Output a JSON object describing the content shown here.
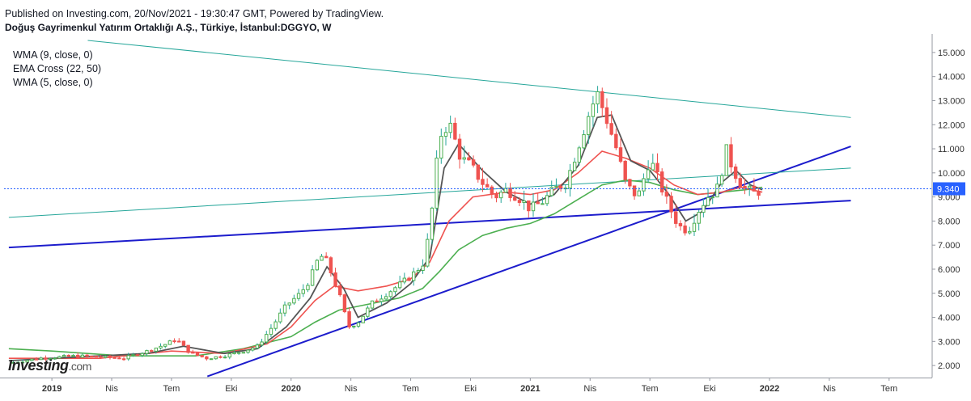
{
  "header": {
    "published": "Published on Investing.com, 20/Nov/2021 - 19:30:47 GMT, Powered by TradingView.",
    "symbol": "Doğuş Gayrimenkul Yatırım Ortaklığı A.Ş., Türkiye, İstanbul:DGGYO, W"
  },
  "indicators": [
    "WMA (9, close, 0)",
    "EMA Cross (22, 50)",
    "WMA (5, close, 0)"
  ],
  "logo": {
    "main": "Investing",
    "suffix": ".com"
  },
  "colors": {
    "up": "#26a69a",
    "up_body": "#4caf50",
    "down": "#ef5350",
    "wma9": "#555555",
    "ema22": "#ef5350",
    "ema50": "#4caf50",
    "trend_blue": "#1c1ccc",
    "trend_teal": "#26a69a",
    "price_line": "#2962ff"
  },
  "chart_data": {
    "type": "candlestick",
    "title": "Doğuş Gayrimenkul Yatırım Ortaklığı A.Ş., Türkiye, İstanbul:DGGYO, W",
    "ylim": [
      1.5,
      15.5
    ],
    "y_ticks": [
      "2.000",
      "3.000",
      "4.000",
      "5.000",
      "6.000",
      "7.000",
      "8.000",
      "9.000",
      "10.000",
      "11.000",
      "12.000",
      "13.000",
      "14.000",
      "15.000"
    ],
    "x_tick_labels": [
      {
        "label": "2019",
        "t": 2019.0,
        "bold": true
      },
      {
        "label": "Nis",
        "t": 2019.25
      },
      {
        "label": "Tem",
        "t": 2019.5
      },
      {
        "label": "Eki",
        "t": 2019.75
      },
      {
        "label": "2020",
        "t": 2020.0,
        "bold": true
      },
      {
        "label": "Nis",
        "t": 2020.25
      },
      {
        "label": "Tem",
        "t": 2020.5
      },
      {
        "label": "Eki",
        "t": 2020.75
      },
      {
        "label": "2021",
        "t": 2021.0,
        "bold": true
      },
      {
        "label": "Nis",
        "t": 2021.25
      },
      {
        "label": "Tem",
        "t": 2021.5
      },
      {
        "label": "Eki",
        "t": 2021.75
      },
      {
        "label": "2022",
        "t": 2022.0,
        "bold": true
      },
      {
        "label": "Nis",
        "t": 2022.25
      },
      {
        "label": "Tem",
        "t": 2022.5
      }
    ],
    "last_price": 9.34,
    "last_price_label": "9.340",
    "close_series": [
      [
        2018.82,
        2.1
      ],
      [
        2018.95,
        2.3
      ],
      [
        2019.1,
        2.4
      ],
      [
        2019.3,
        2.3
      ],
      [
        2019.4,
        2.6
      ],
      [
        2019.48,
        2.9
      ],
      [
        2019.52,
        3.1
      ],
      [
        2019.58,
        2.5
      ],
      [
        2019.65,
        2.3
      ],
      [
        2019.72,
        2.4
      ],
      [
        2019.8,
        2.6
      ],
      [
        2019.86,
        2.8
      ],
      [
        2019.92,
        3.6
      ],
      [
        2019.98,
        4.5
      ],
      [
        2020.04,
        5.0
      ],
      [
        2020.08,
        5.6
      ],
      [
        2020.12,
        6.6
      ],
      [
        2020.15,
        6.3
      ],
      [
        2020.2,
        5.0
      ],
      [
        2020.24,
        3.6
      ],
      [
        2020.28,
        3.8
      ],
      [
        2020.34,
        4.6
      ],
      [
        2020.4,
        5.0
      ],
      [
        2020.46,
        5.4
      ],
      [
        2020.5,
        5.7
      ],
      [
        2020.55,
        6.2
      ],
      [
        2020.58,
        7.6
      ],
      [
        2020.62,
        11.5
      ],
      [
        2020.66,
        12.1
      ],
      [
        2020.71,
        10.6
      ],
      [
        2020.75,
        10.3
      ],
      [
        2020.8,
        9.6
      ],
      [
        2020.85,
        9.0
      ],
      [
        2020.9,
        9.3
      ],
      [
        2020.95,
        9.0
      ],
      [
        2021.0,
        8.5
      ],
      [
        2021.05,
        8.8
      ],
      [
        2021.1,
        9.3
      ],
      [
        2021.15,
        9.6
      ],
      [
        2021.2,
        11.1
      ],
      [
        2021.25,
        12.6
      ],
      [
        2021.28,
        13.3
      ],
      [
        2021.32,
        12.2
      ],
      [
        2021.36,
        11.0
      ],
      [
        2021.4,
        9.5
      ],
      [
        2021.45,
        9.0
      ],
      [
        2021.5,
        10.6
      ],
      [
        2021.54,
        9.6
      ],
      [
        2021.58,
        8.6
      ],
      [
        2021.62,
        7.8
      ],
      [
        2021.66,
        7.6
      ],
      [
        2021.7,
        8.4
      ],
      [
        2021.74,
        9.0
      ],
      [
        2021.78,
        9.3
      ],
      [
        2021.82,
        10.9
      ],
      [
        2021.85,
        10.1
      ],
      [
        2021.88,
        9.6
      ],
      [
        2021.9,
        9.3
      ],
      [
        2021.94,
        9.15
      ],
      [
        2021.97,
        9.34
      ]
    ],
    "wma9_series": [
      [
        2018.82,
        2.2
      ],
      [
        2019.1,
        2.35
      ],
      [
        2019.4,
        2.5
      ],
      [
        2019.55,
        2.8
      ],
      [
        2019.72,
        2.5
      ],
      [
        2019.86,
        2.7
      ],
      [
        2019.98,
        3.6
      ],
      [
        2020.08,
        4.8
      ],
      [
        2020.15,
        6.1
      ],
      [
        2020.22,
        5.2
      ],
      [
        2020.28,
        4.0
      ],
      [
        2020.4,
        4.6
      ],
      [
        2020.5,
        5.4
      ],
      [
        2020.58,
        6.5
      ],
      [
        2020.64,
        10.2
      ],
      [
        2020.7,
        11.2
      ],
      [
        2020.8,
        10.1
      ],
      [
        2020.9,
        9.2
      ],
      [
        2021.0,
        8.7
      ],
      [
        2021.1,
        9.1
      ],
      [
        2021.2,
        10.3
      ],
      [
        2021.28,
        12.3
      ],
      [
        2021.34,
        12.4
      ],
      [
        2021.42,
        10.5
      ],
      [
        2021.5,
        10.1
      ],
      [
        2021.58,
        9.1
      ],
      [
        2021.65,
        8.0
      ],
      [
        2021.72,
        8.4
      ],
      [
        2021.8,
        9.6
      ],
      [
        2021.86,
        10.1
      ],
      [
        2021.92,
        9.5
      ],
      [
        2021.97,
        9.3
      ]
    ],
    "ema22_series": [
      [
        2018.82,
        2.3
      ],
      [
        2019.2,
        2.3
      ],
      [
        2019.5,
        2.6
      ],
      [
        2019.72,
        2.5
      ],
      [
        2019.9,
        2.9
      ],
      [
        2020.0,
        3.6
      ],
      [
        2020.1,
        4.7
      ],
      [
        2020.18,
        5.3
      ],
      [
        2020.28,
        5.1
      ],
      [
        2020.4,
        5.3
      ],
      [
        2020.5,
        5.6
      ],
      [
        2020.58,
        6.3
      ],
      [
        2020.66,
        8.0
      ],
      [
        2020.76,
        9.0
      ],
      [
        2020.9,
        9.2
      ],
      [
        2021.0,
        9.1
      ],
      [
        2021.1,
        9.3
      ],
      [
        2021.2,
        10.0
      ],
      [
        2021.3,
        10.9
      ],
      [
        2021.4,
        10.6
      ],
      [
        2021.5,
        10.2
      ],
      [
        2021.6,
        9.5
      ],
      [
        2021.7,
        9.1
      ],
      [
        2021.8,
        9.2
      ],
      [
        2021.88,
        9.4
      ],
      [
        2021.97,
        9.2
      ]
    ],
    "ema50_series": [
      [
        2018.82,
        2.7
      ],
      [
        2019.0,
        2.6
      ],
      [
        2019.3,
        2.4
      ],
      [
        2019.6,
        2.4
      ],
      [
        2019.8,
        2.7
      ],
      [
        2020.0,
        3.2
      ],
      [
        2020.1,
        3.8
      ],
      [
        2020.2,
        4.3
      ],
      [
        2020.3,
        4.5
      ],
      [
        2020.45,
        4.8
      ],
      [
        2020.55,
        5.2
      ],
      [
        2020.62,
        5.9
      ],
      [
        2020.7,
        6.8
      ],
      [
        2020.8,
        7.4
      ],
      [
        2020.9,
        7.7
      ],
      [
        2021.0,
        7.9
      ],
      [
        2021.1,
        8.3
      ],
      [
        2021.2,
        8.9
      ],
      [
        2021.3,
        9.5
      ],
      [
        2021.4,
        9.7
      ],
      [
        2021.5,
        9.6
      ],
      [
        2021.6,
        9.3
      ],
      [
        2021.7,
        9.1
      ],
      [
        2021.8,
        9.2
      ],
      [
        2021.9,
        9.3
      ],
      [
        2021.97,
        9.4
      ]
    ],
    "trendlines": [
      {
        "name": "support-horizontal",
        "color": "trend_blue",
        "t1": 2018.82,
        "y1": 6.9,
        "t2": 2022.34,
        "y2": 8.85
      },
      {
        "name": "support-rising",
        "color": "trend_blue",
        "t1": 2019.65,
        "y1": 1.55,
        "t2": 2022.34,
        "y2": 11.1
      },
      {
        "name": "resistance-falling",
        "color": "trend_teal",
        "t1": 2019.15,
        "y1": 15.5,
        "t2": 2022.34,
        "y2": 12.3
      },
      {
        "name": "channel-rising",
        "color": "trend_teal",
        "t1": 2018.82,
        "y1": 8.15,
        "t2": 2022.34,
        "y2": 10.2
      }
    ]
  }
}
